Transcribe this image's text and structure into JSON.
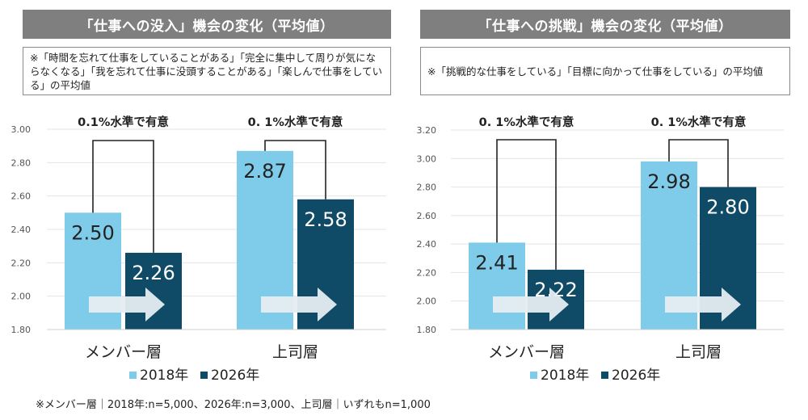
{
  "footnote": "※メンバー層｜2018年:n=5,000、2026年:n=3,000、上司層｜いずれもn=1,000",
  "colors": {
    "s2018": "#7fcbea",
    "s2026": "#0f4a66",
    "arrow": "#e6edf2",
    "grid": "#e4e4e4",
    "title_bg": "#7f7f7f"
  },
  "chart_data": [
    {
      "type": "bar",
      "title": "「仕事への没入」機会の変化（平均値）",
      "note": "※「時間を忘れて仕事をしていることがある」「完全に集中して周りが気にならなくなる」「我を忘れて仕事に没頭することがある」「楽しんで仕事をしている」の平均値",
      "categories": [
        "メンバー層",
        "上司層"
      ],
      "series": [
        {
          "name": "2018年",
          "values": [
            2.5,
            2.87
          ],
          "labels": [
            "2.50",
            "2.87"
          ]
        },
        {
          "name": "2026年",
          "values": [
            2.26,
            2.58
          ],
          "labels": [
            "2.26",
            "2.58"
          ]
        }
      ],
      "ylim": [
        1.8,
        3.0
      ],
      "yticks": [
        "1.80",
        "2.00",
        "2.20",
        "2.40",
        "2.60",
        "2.80",
        "3.00"
      ],
      "significance": [
        "0.1%水準で有意",
        "0. 1%水準で有意"
      ],
      "legend": "bottom",
      "grid": true
    },
    {
      "type": "bar",
      "title": "「仕事への挑戦」機会の変化（平均値）",
      "note": "※「挑戦的な仕事をしている」「目標に向かって仕事をしている」の平均値",
      "categories": [
        "メンバー層",
        "上司層"
      ],
      "series": [
        {
          "name": "2018年",
          "values": [
            2.41,
            2.98
          ],
          "labels": [
            "2.41",
            "2.98"
          ]
        },
        {
          "name": "2026年",
          "values": [
            2.22,
            2.8
          ],
          "labels": [
            "2.22",
            "2.80"
          ]
        }
      ],
      "ylim": [
        1.8,
        3.2
      ],
      "yticks": [
        "1.80",
        "2.00",
        "2.20",
        "2.40",
        "2.60",
        "2.80",
        "3.00",
        "3.20"
      ],
      "significance": [
        "0. 1%水準で有意",
        "0. 1%水準で有意"
      ],
      "legend": "bottom",
      "grid": true
    }
  ]
}
